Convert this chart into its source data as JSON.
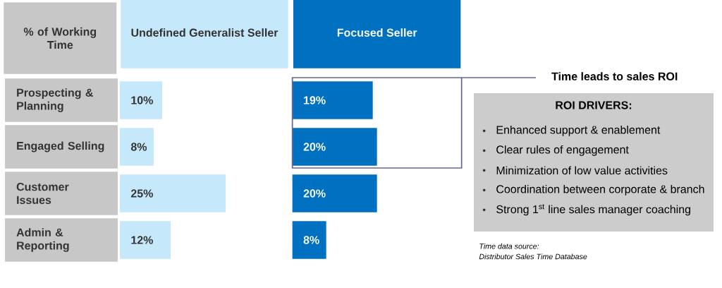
{
  "chart_data": [
    {
      "type": "bar",
      "orientation": "horizontal",
      "title": "Undefined Generalist Seller",
      "ylabel": "% of Working Time",
      "categories": [
        "Prospecting & Planning",
        "Engaged Selling",
        "Customer Issues",
        "Admin & Reporting"
      ],
      "values": [
        10,
        8,
        25,
        12
      ],
      "value_labels": [
        "10%",
        "8%",
        "25%",
        "12%"
      ],
      "color": "#c5e8fb",
      "tick_labels": "y"
    },
    {
      "type": "bar",
      "orientation": "horizontal",
      "title": "Focused Seller",
      "values": [
        19,
        20,
        20,
        8
      ],
      "value_labels": [
        "19%",
        "20%",
        "20%",
        "8%"
      ],
      "color": "#0070c0",
      "tick_labels": false,
      "annotations": [
        "Time leads to sales ROI",
        "Time data source:",
        "Distributor Sales Time Database"
      ]
    },
    {
      "type": "other",
      "title": "ROI DRIVERS:",
      "annotations": [
        "Enhanced support & enablement",
        "Clear rules of engagement",
        "Minimization of low value activities",
        "Coordination between corporate & branch",
        "Strong 1$^{st}$ line sales manager coaching"
      ]
    }
  ]
}
